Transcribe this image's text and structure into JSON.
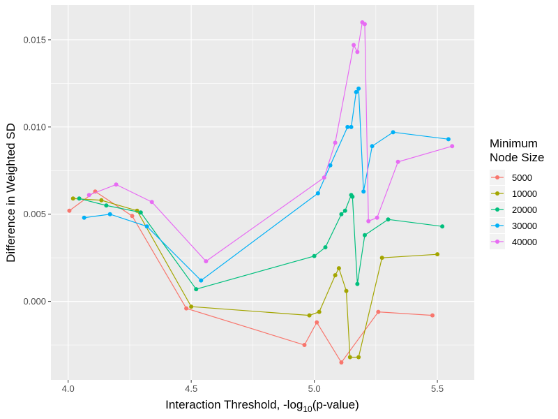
{
  "chart_data": {
    "type": "line",
    "xlabel": "Interaction Threshold, -log",
    "xlabel_sub": "10",
    "xlabel_tail": "(p-value)",
    "ylabel": "Difference in Weighted SD",
    "xlim": [
      3.93,
      5.65
    ],
    "ylim": [
      -0.0045,
      0.017
    ],
    "x_ticks": [
      4.0,
      4.5,
      5.0,
      5.5
    ],
    "x_tick_labels": [
      "4.0",
      "4.5",
      "5.0",
      "5.5"
    ],
    "y_ticks": [
      0.0,
      0.005,
      0.01,
      0.015
    ],
    "y_tick_labels": [
      "0.000",
      "0.005",
      "0.010",
      "0.015"
    ],
    "grid": true,
    "legend": {
      "title_line1": "Minimum",
      "title_line2": "Node Size",
      "position": "right"
    },
    "series": [
      {
        "name": "5000",
        "color": "#F8766D",
        "points": [
          [
            4.005,
            0.0052
          ],
          [
            4.11,
            0.0063
          ],
          [
            4.26,
            0.0049
          ],
          [
            4.48,
            -0.0004
          ],
          [
            4.96,
            -0.0025
          ],
          [
            5.01,
            -0.0012
          ],
          [
            5.11,
            -0.0035
          ],
          [
            5.26,
            -0.0006
          ],
          [
            5.48,
            -0.0008
          ]
        ]
      },
      {
        "name": "10000",
        "color": "#A3A500",
        "points": [
          [
            4.02,
            0.0059
          ],
          [
            4.135,
            0.0058
          ],
          [
            4.28,
            0.0052
          ],
          [
            4.5,
            -0.0003
          ],
          [
            4.98,
            -0.0008
          ],
          [
            5.02,
            -0.0006
          ],
          [
            5.085,
            0.0015
          ],
          [
            5.1,
            0.0019
          ],
          [
            5.13,
            0.0006
          ],
          [
            5.145,
            -0.0032
          ],
          [
            5.18,
            -0.0032
          ],
          [
            5.275,
            0.0025
          ],
          [
            5.5,
            0.0027
          ]
        ]
      },
      {
        "name": "20000",
        "color": "#00BF7D",
        "points": [
          [
            4.045,
            0.0059
          ],
          [
            4.155,
            0.0055
          ],
          [
            4.295,
            0.0051
          ],
          [
            4.52,
            0.0007
          ],
          [
            5.0,
            0.0026
          ],
          [
            5.045,
            0.0031
          ],
          [
            5.11,
            0.005
          ],
          [
            5.125,
            0.0052
          ],
          [
            5.15,
            0.0061
          ],
          [
            5.155,
            0.006
          ],
          [
            5.175,
            0.001
          ],
          [
            5.205,
            0.0038
          ],
          [
            5.3,
            0.0047
          ],
          [
            5.52,
            0.0043
          ]
        ]
      },
      {
        "name": "30000",
        "color": "#00B0F6",
        "points": [
          [
            4.065,
            0.0048
          ],
          [
            4.17,
            0.005
          ],
          [
            4.32,
            0.0043
          ],
          [
            4.54,
            0.0012
          ],
          [
            5.015,
            0.0062
          ],
          [
            5.065,
            0.0078
          ],
          [
            5.135,
            0.01
          ],
          [
            5.15,
            0.01
          ],
          [
            5.17,
            0.012
          ],
          [
            5.18,
            0.0122
          ],
          [
            5.2,
            0.0063
          ],
          [
            5.235,
            0.0089
          ],
          [
            5.32,
            0.0097
          ],
          [
            5.545,
            0.0093
          ]
        ]
      },
      {
        "name": "40000",
        "color": "#E76BF3",
        "points": [
          [
            4.085,
            0.0061
          ],
          [
            4.195,
            0.0067
          ],
          [
            4.34,
            0.0057
          ],
          [
            4.56,
            0.0023
          ],
          [
            5.04,
            0.0071
          ],
          [
            5.085,
            0.0091
          ],
          [
            5.16,
            0.0147
          ],
          [
            5.175,
            0.0143
          ],
          [
            5.195,
            0.016
          ],
          [
            5.205,
            0.0159
          ],
          [
            5.22,
            0.0046
          ],
          [
            5.255,
            0.0048
          ],
          [
            5.34,
            0.008
          ],
          [
            5.56,
            0.0089
          ]
        ]
      }
    ]
  }
}
